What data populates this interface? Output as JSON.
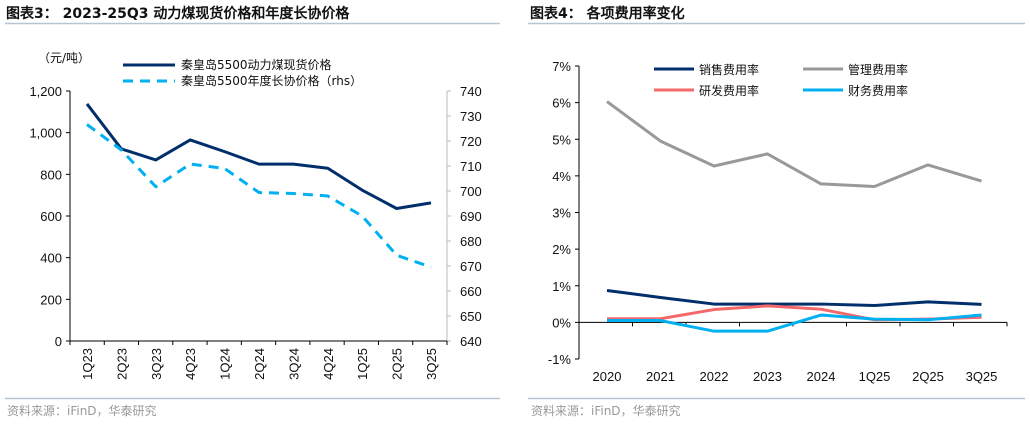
{
  "chart_data": [
    {
      "type": "line",
      "title": "图表3：  2023-25Q3 动力煤现货价格和年度长协价格",
      "ylabel": "（元/吨）",
      "categories": [
        "1Q23",
        "2Q23",
        "3Q23",
        "4Q23",
        "1Q24",
        "2Q24",
        "3Q24",
        "4Q24",
        "1Q25",
        "2Q25",
        "3Q25"
      ],
      "ylim": [
        0,
        1200
      ],
      "yticks": [
        "0",
        "200",
        "400",
        "600",
        "800",
        "1,000",
        "1,200"
      ],
      "y2lim": [
        640,
        740
      ],
      "y2ticks": [
        "640",
        "650",
        "660",
        "670",
        "680",
        "690",
        "700",
        "710",
        "720",
        "730",
        "740"
      ],
      "grid": false,
      "legend": "top",
      "series": [
        {
          "name": "秦皇岛5500动力煤现货价格",
          "axis": "left",
          "style": "solid",
          "color": "#002f6c",
          "values": [
            1138,
            922,
            869,
            965,
            909,
            849,
            849,
            829,
            724,
            636,
            663
          ]
        },
        {
          "name": "秦皇岛5500年度长协价格（rhs）",
          "axis": "right",
          "style": "dashed",
          "color": "#00b0f0",
          "values": [
            726.6,
            716.4,
            701.7,
            710.8,
            709,
            699.4,
            699,
            698,
            690,
            674.3,
            669.6
          ]
        }
      ],
      "source": "资料来源：iFinD，华泰研究"
    },
    {
      "type": "line",
      "title": "图表4：  各项费用率变化",
      "categories": [
        "2020",
        "2021",
        "2022",
        "2023",
        "2024",
        "1Q25",
        "2Q25",
        "3Q25"
      ],
      "ylim": [
        -1,
        7
      ],
      "yticks": [
        "-1%",
        "0%",
        "1%",
        "2%",
        "3%",
        "4%",
        "5%",
        "6%",
        "7%"
      ],
      "grid": false,
      "legend": "top",
      "series": [
        {
          "name": "销售费用率",
          "color": "#002f6c",
          "values": [
            0.87,
            0.68,
            0.5,
            0.5,
            0.5,
            0.46,
            0.56,
            0.49
          ]
        },
        {
          "name": "管理费用率",
          "color": "#999999",
          "values": [
            6.03,
            4.95,
            4.27,
            4.6,
            3.78,
            3.71,
            4.3,
            3.86
          ]
        },
        {
          "name": "研发费用率",
          "color": "#f4686a",
          "values": [
            0.1,
            0.1,
            0.35,
            0.45,
            0.36,
            0.07,
            0.09,
            0.14
          ]
        },
        {
          "name": "财务费用率",
          "color": "#00b0f0",
          "values": [
            0.05,
            0.05,
            -0.24,
            -0.24,
            0.2,
            0.09,
            0.07,
            0.2
          ]
        }
      ],
      "source": "资料来源：iFinD，华泰研究"
    }
  ]
}
